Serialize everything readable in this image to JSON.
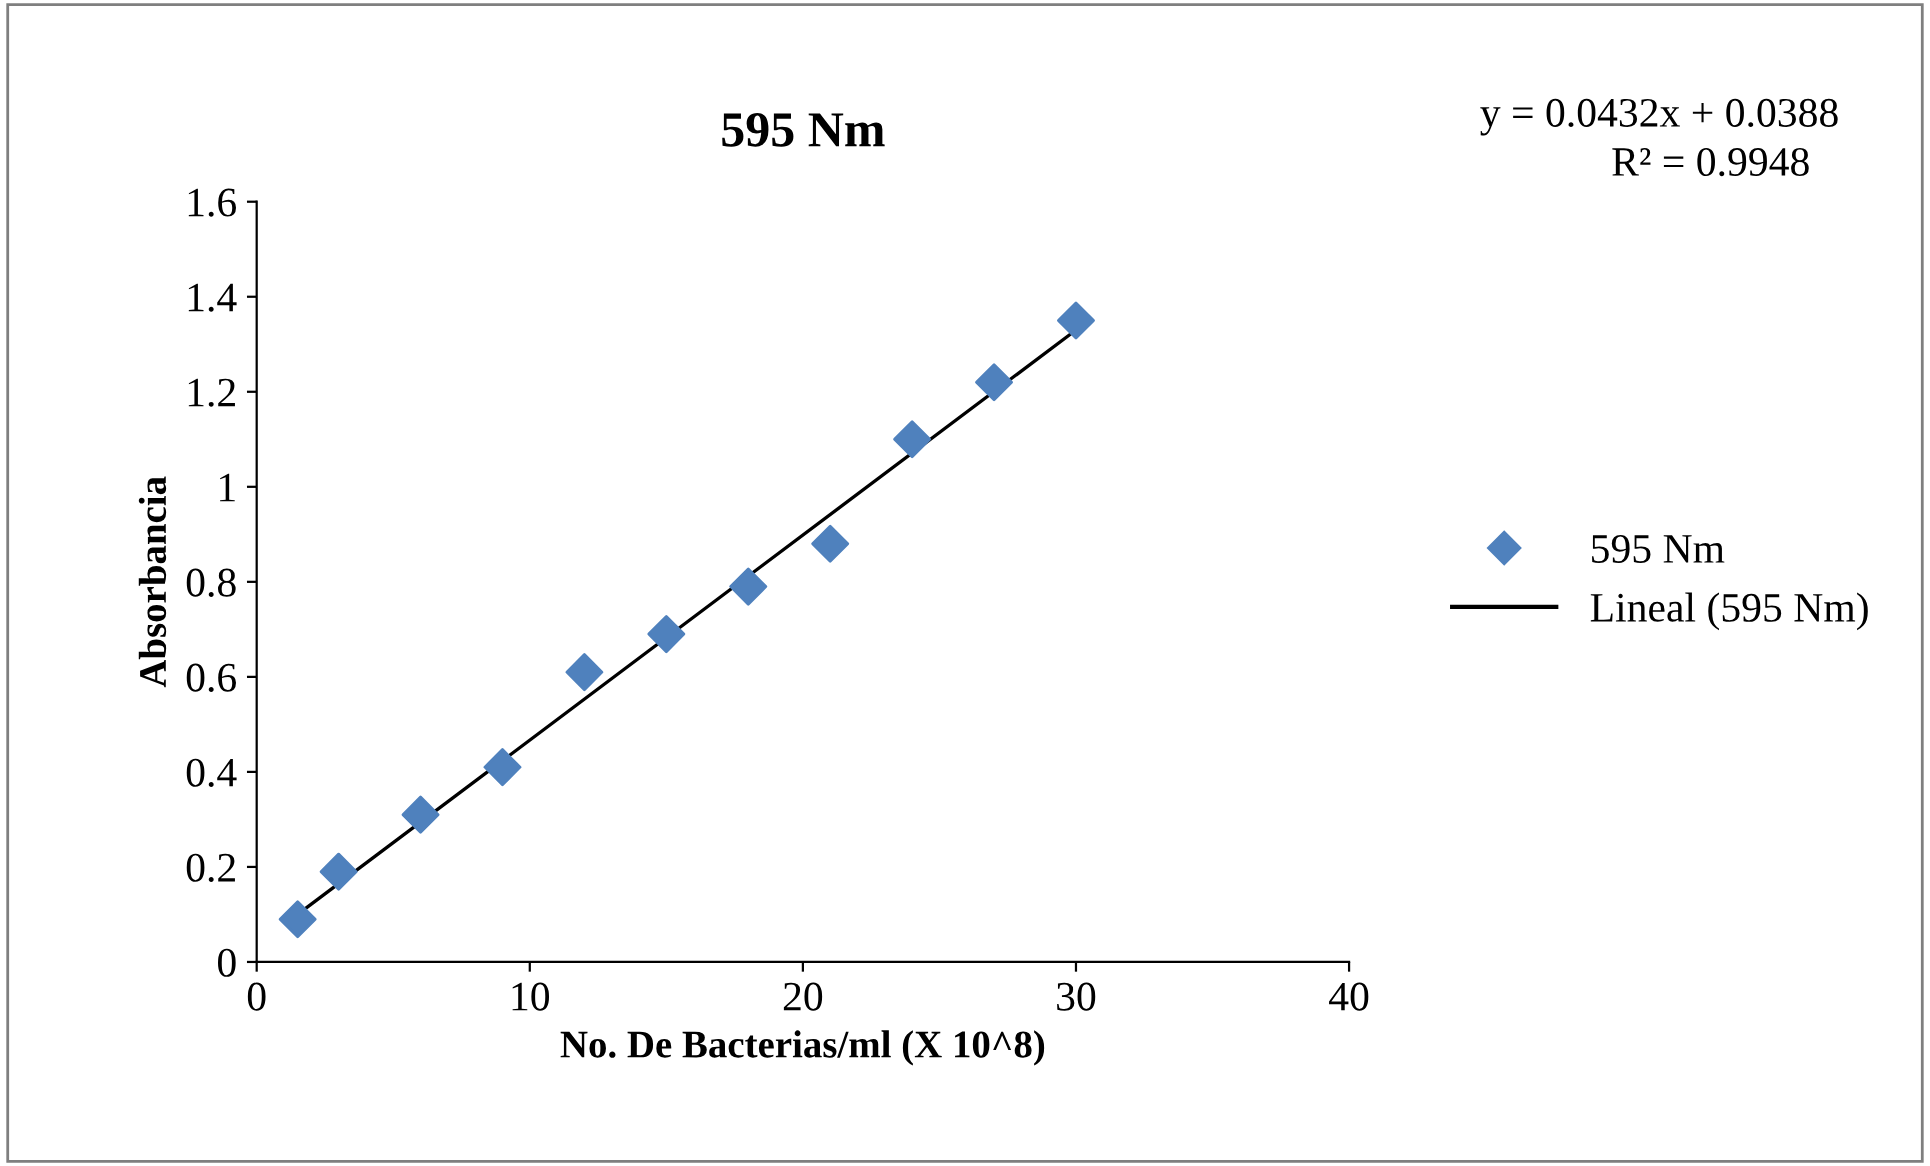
{
  "chart_data": {
    "type": "scatter",
    "title": "595 Nm",
    "xlabel": "No. De Bacterias/ml (X 10^8)",
    "ylabel": "Absorbancia",
    "annotations": [
      "y = 0.0432x + 0.0388",
      "R² = 0.9948"
    ],
    "series": [
      {
        "name": "595 Nm",
        "marker": "diamond",
        "color": "#4f81bd",
        "x": [
          1.5,
          3,
          6,
          9,
          12,
          15,
          18,
          21,
          24,
          27,
          30
        ],
        "values": [
          0.09,
          0.19,
          0.31,
          0.41,
          0.61,
          0.69,
          0.79,
          0.88,
          1.1,
          1.22,
          1.35
        ]
      },
      {
        "name": "Lineal (595 Nm)",
        "type": "line",
        "marker": "none",
        "line_style": "solid",
        "color": "#000000",
        "x": [
          1.5,
          30
        ],
        "values": [
          0.1,
          1.33
        ]
      }
    ],
    "xlim": [
      0,
      40
    ],
    "xticks": [
      0,
      10,
      20,
      30,
      40
    ],
    "ylim": [
      0,
      1.6
    ],
    "yticks": [
      0,
      0.2,
      0.4,
      0.6,
      0.8,
      1,
      1.2,
      1.4,
      1.6
    ],
    "grid": false,
    "legend": "right"
  }
}
